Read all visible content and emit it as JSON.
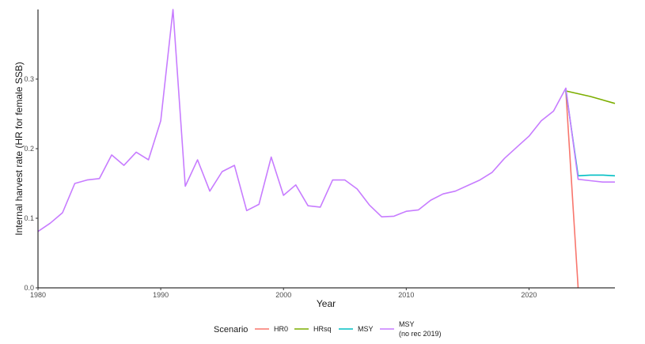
{
  "chart_data": {
    "type": "line",
    "xlabel": "Year",
    "ylabel": "Internal harvest rate (HR for female SSB)",
    "xlim": [
      1980,
      2027
    ],
    "ylim": [
      0,
      0.4
    ],
    "x_ticks": [
      1980,
      1990,
      2000,
      2010,
      2020
    ],
    "y_ticks": [
      0.0,
      0.1,
      0.2,
      0.3
    ],
    "y_tick_labels": [
      "0.0",
      "0.1",
      "0.2",
      "0.3"
    ],
    "grid": false,
    "legend": {
      "title": "Scenario",
      "position": "bottom",
      "entries": [
        {
          "label": "HR0",
          "color": "#F8766D"
        },
        {
          "label": "HRsq",
          "color": "#7CAE00"
        },
        {
          "label": "MSY",
          "color": "#00BFC4"
        },
        {
          "label": "MSY",
          "label2": "(no rec 2019)",
          "color": "#C77CFF"
        }
      ]
    },
    "series": [
      {
        "name": "HR0",
        "color": "#F8766D",
        "x": [
          2023,
          2024
        ],
        "y": [
          0.283,
          0.0
        ]
      },
      {
        "name": "HRsq",
        "color": "#7CAE00",
        "x": [
          2023,
          2024,
          2025,
          2026,
          2027
        ],
        "y": [
          0.283,
          0.279,
          0.275,
          0.27,
          0.265
        ]
      },
      {
        "name": "MSY",
        "color": "#00BFC4",
        "x": [
          2023,
          2024,
          2025,
          2026,
          2027
        ],
        "y": [
          0.284,
          0.161,
          0.162,
          0.162,
          0.161
        ]
      },
      {
        "name": "MSY (no rec 2019)",
        "color": "#C77CFF",
        "x": [
          1980,
          1981,
          1982,
          1983,
          1984,
          1985,
          1986,
          1987,
          1988,
          1989,
          1990,
          1991,
          1992,
          1993,
          1994,
          1995,
          1996,
          1997,
          1998,
          1999,
          2000,
          2001,
          2002,
          2003,
          2004,
          2005,
          2006,
          2007,
          2008,
          2009,
          2010,
          2011,
          2012,
          2013,
          2014,
          2015,
          2016,
          2017,
          2018,
          2019,
          2020,
          2021,
          2022,
          2023,
          2024,
          2025,
          2026,
          2027
        ],
        "y": [
          0.081,
          0.093,
          0.108,
          0.15,
          0.155,
          0.157,
          0.191,
          0.176,
          0.195,
          0.184,
          0.24,
          0.4,
          0.146,
          0.184,
          0.139,
          0.167,
          0.176,
          0.111,
          0.12,
          0.188,
          0.133,
          0.148,
          0.118,
          0.116,
          0.155,
          0.155,
          0.142,
          0.119,
          0.102,
          0.103,
          0.11,
          0.112,
          0.126,
          0.135,
          0.139,
          0.147,
          0.155,
          0.166,
          0.186,
          0.202,
          0.218,
          0.24,
          0.254,
          0.287,
          0.156,
          0.154,
          0.152,
          0.152
        ]
      }
    ]
  }
}
